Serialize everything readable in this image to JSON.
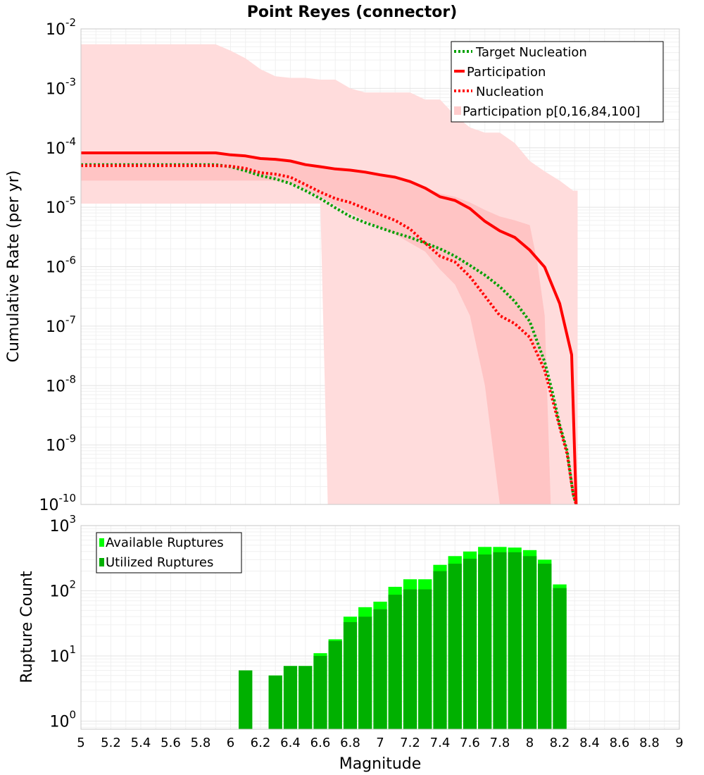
{
  "chart_data": [
    {
      "type": "line",
      "title": "Point Reyes (connector)",
      "xlabel": "",
      "ylabel": "Cumulative Rate (per yr)",
      "xlim": [
        5,
        9
      ],
      "ylim": [
        1e-10,
        0.01
      ],
      "yscale": "log",
      "y_tick_exponents": [
        -10,
        -9,
        -8,
        -7,
        -6,
        -5,
        -4,
        -3,
        -2
      ],
      "grid": true,
      "legend_position": "top-right",
      "series": [
        {
          "name": "Target Nucleation",
          "style": "dotted",
          "color": "#00a000",
          "x": [
            5.0,
            5.1,
            5.2,
            5.3,
            5.4,
            5.5,
            5.6,
            5.7,
            5.8,
            5.9,
            6.0,
            6.1,
            6.2,
            6.3,
            6.4,
            6.5,
            6.6,
            6.7,
            6.8,
            6.9,
            7.0,
            7.1,
            7.2,
            7.3,
            7.4,
            7.5,
            7.6,
            7.7,
            7.8,
            7.9,
            8.0,
            8.1,
            8.15,
            8.2,
            8.25,
            8.29,
            8.31
          ],
          "y": [
            5.2e-05,
            5.2e-05,
            5.2e-05,
            5.2e-05,
            5.2e-05,
            5.2e-05,
            5.2e-05,
            5.2e-05,
            5.2e-05,
            5.2e-05,
            4.8e-05,
            4.1e-05,
            3.4e-05,
            3e-05,
            2.5e-05,
            1.9e-05,
            1.4e-05,
            9.8e-06,
            7e-06,
            5.5e-06,
            4.5e-06,
            3.7e-06,
            3.1e-06,
            2.5e-06,
            2e-06,
            1.5e-06,
            1.05e-06,
            7.2e-07,
            4.6e-07,
            2.6e-07,
            1.2e-07,
            2.5e-08,
            8e-09,
            2.2e-09,
            8e-10,
            1.5e-10,
            1e-10
          ]
        },
        {
          "name": "Participation",
          "style": "solid",
          "color": "#ff0000",
          "x": [
            5.0,
            5.1,
            5.2,
            5.3,
            5.4,
            5.5,
            5.6,
            5.7,
            5.8,
            5.9,
            6.0,
            6.1,
            6.2,
            6.3,
            6.4,
            6.5,
            6.6,
            6.7,
            6.8,
            6.9,
            7.0,
            7.1,
            7.2,
            7.3,
            7.4,
            7.5,
            7.6,
            7.7,
            7.8,
            7.9,
            8.0,
            8.1,
            8.2,
            8.28,
            8.31
          ],
          "y": [
            8.2e-05,
            8.2e-05,
            8.2e-05,
            8.2e-05,
            8.2e-05,
            8.2e-05,
            8.2e-05,
            8.2e-05,
            8.2e-05,
            8.2e-05,
            7.6e-05,
            7.3e-05,
            6.6e-05,
            6.4e-05,
            6e-05,
            5.2e-05,
            4.8e-05,
            4.4e-05,
            4.2e-05,
            3.9e-05,
            3.5e-05,
            3.2e-05,
            2.7e-05,
            2.1e-05,
            1.5e-05,
            1.3e-05,
            9.5e-06,
            5.8e-06,
            4e-06,
            3.1e-06,
            1.9e-06,
            9.8e-07,
            2.4e-07,
            3.3e-08,
            1e-10
          ]
        },
        {
          "name": "Nucleation",
          "style": "dotted",
          "color": "#ff0000",
          "x": [
            5.0,
            5.1,
            5.2,
            5.3,
            5.4,
            5.5,
            5.6,
            5.7,
            5.8,
            5.9,
            6.0,
            6.1,
            6.2,
            6.3,
            6.4,
            6.5,
            6.6,
            6.7,
            6.8,
            6.9,
            7.0,
            7.1,
            7.2,
            7.3,
            7.4,
            7.5,
            7.6,
            7.7,
            7.8,
            7.9,
            8.0,
            8.1,
            8.15,
            8.2,
            8.25,
            8.29,
            8.31
          ],
          "y": [
            5e-05,
            5e-05,
            5e-05,
            5e-05,
            5e-05,
            5e-05,
            5e-05,
            5e-05,
            5e-05,
            5e-05,
            4.9e-05,
            4.5e-05,
            3.8e-05,
            3.6e-05,
            3.2e-05,
            2.4e-05,
            1.8e-05,
            1.4e-05,
            1.2e-05,
            9.5e-06,
            7.5e-06,
            6e-06,
            4.3e-06,
            2.5e-06,
            1.5e-06,
            1.2e-06,
            6.8e-07,
            3.2e-07,
            1.5e-07,
            1.1e-07,
            6.5e-08,
            1.8e-08,
            6e-09,
            2e-09,
            7e-10,
            1.5e-10,
            1e-10
          ]
        },
        {
          "name": "Participation p[0,16,84,100]",
          "style": "band",
          "color": "#ffdcdc",
          "outer_band": {
            "x": [
              5.0,
              5.1,
              5.2,
              5.3,
              5.4,
              5.5,
              5.6,
              5.7,
              5.8,
              5.9,
              6.0,
              6.1,
              6.2,
              6.3,
              6.4,
              6.5,
              6.6,
              6.65,
              6.7,
              6.8,
              6.9,
              7.0,
              7.1,
              7.2,
              7.3,
              7.4,
              7.5,
              7.6,
              7.7,
              7.8,
              7.9,
              8.0,
              8.1,
              8.2,
              8.29,
              8.32
            ],
            "upper": [
              0.0055,
              0.0055,
              0.0055,
              0.0055,
              0.0055,
              0.0055,
              0.0055,
              0.0055,
              0.0055,
              0.0055,
              0.0043,
              0.0032,
              0.0021,
              0.0016,
              0.0015,
              0.0015,
              0.0014,
              0.0014,
              0.0014,
              0.001,
              0.00085,
              0.00085,
              0.00085,
              0.00085,
              0.00065,
              0.00065,
              0.00035,
              0.00022,
              0.00018,
              0.00018,
              0.00012,
              6e-05,
              4e-05,
              2.8e-05,
              1.9e-05,
              1.9e-05
            ],
            "lower": [
              1.15e-05,
              1.15e-05,
              1.15e-05,
              1.15e-05,
              1.15e-05,
              1.15e-05,
              1.15e-05,
              1.15e-05,
              1.15e-05,
              1.15e-05,
              1.15e-05,
              1.15e-05,
              1.15e-05,
              1.15e-05,
              1.15e-05,
              1.15e-05,
              1.15e-05,
              1e-10,
              1e-10,
              1e-10,
              1e-10,
              1e-10,
              1e-10,
              1e-10,
              1e-10,
              1e-10,
              1e-10,
              1e-10,
              1e-10,
              1e-10,
              1e-10,
              1e-10,
              1e-10,
              1e-10,
              1e-10,
              1e-10
            ]
          },
          "inner_band": {
            "x": [
              5.0,
              5.1,
              5.2,
              5.3,
              5.4,
              5.5,
              5.6,
              5.7,
              5.8,
              5.9,
              6.0,
              6.1,
              6.2,
              6.3,
              6.4,
              6.5,
              6.6,
              6.7,
              6.8,
              6.9,
              7.0,
              7.1,
              7.2,
              7.3,
              7.4,
              7.5,
              7.6,
              7.7,
              7.8,
              7.9,
              8.0,
              8.05,
              8.1,
              8.14
            ],
            "upper": [
              8.2e-05,
              8.2e-05,
              8.2e-05,
              8.2e-05,
              8.2e-05,
              8.2e-05,
              8.2e-05,
              8.2e-05,
              8.2e-05,
              8.2e-05,
              7.6e-05,
              7.3e-05,
              6.6e-05,
              6.4e-05,
              6e-05,
              5.2e-05,
              4.8e-05,
              4.4e-05,
              4.2e-05,
              3.9e-05,
              3.5e-05,
              3.2e-05,
              2.7e-05,
              2.1e-05,
              1.7e-05,
              1.5e-05,
              1.2e-05,
              9e-06,
              7e-06,
              6e-06,
              5e-06,
              1.2e-06,
              1.5e-07,
              1e-10
            ],
            "lower": [
              2.8e-05,
              2.8e-05,
              2.8e-05,
              2.8e-05,
              2.8e-05,
              2.8e-05,
              2.8e-05,
              2.8e-05,
              2.8e-05,
              2.8e-05,
              2.8e-05,
              2.8e-05,
              2.8e-05,
              2.8e-05,
              2.6e-05,
              2e-05,
              1.5e-05,
              1.1e-05,
              8e-06,
              6e-06,
              4.5e-06,
              3.5e-06,
              2.5e-06,
              1.8e-06,
              9e-07,
              5e-07,
              1.5e-07,
              1e-08,
              1e-10,
              1e-10,
              1e-10,
              1e-10,
              1e-10,
              1e-10
            ]
          }
        }
      ]
    },
    {
      "type": "bar",
      "title": "",
      "xlabel": "Magnitude",
      "ylabel": "Rupture Count",
      "xlim": [
        5,
        9
      ],
      "ylim": [
        0.75,
        1000
      ],
      "yscale": "log",
      "y_tick_exponents": [
        0,
        1,
        2,
        3
      ],
      "x_ticks": [
        "5",
        "5.2",
        "5.4",
        "5.6",
        "5.8",
        "6",
        "6.2",
        "6.4",
        "6.6",
        "6.8",
        "7",
        "7.2",
        "7.4",
        "7.6",
        "7.8",
        "8",
        "8.2",
        "8.4",
        "8.6",
        "8.8",
        "9"
      ],
      "grid": true,
      "legend_position": "top-left",
      "bin_width": 0.1,
      "categories": [
        6.1,
        6.3,
        6.4,
        6.5,
        6.6,
        6.7,
        6.8,
        6.9,
        7.0,
        7.1,
        7.2,
        7.3,
        7.4,
        7.5,
        7.6,
        7.7,
        7.8,
        7.9,
        8.0,
        8.1,
        8.2
      ],
      "series": [
        {
          "name": "Available Ruptures",
          "color": "#00ff00",
          "values": [
            6,
            5,
            7,
            7,
            11,
            18,
            40,
            56,
            68,
            115,
            150,
            150,
            250,
            340,
            400,
            470,
            470,
            460,
            420,
            300,
            125
          ]
        },
        {
          "name": "Utilized Ruptures",
          "color": "#00b000",
          "values": [
            6,
            5,
            7,
            7,
            10,
            17,
            33,
            40,
            52,
            87,
            105,
            105,
            200,
            260,
            310,
            360,
            390,
            390,
            340,
            260,
            110
          ]
        }
      ]
    }
  ]
}
